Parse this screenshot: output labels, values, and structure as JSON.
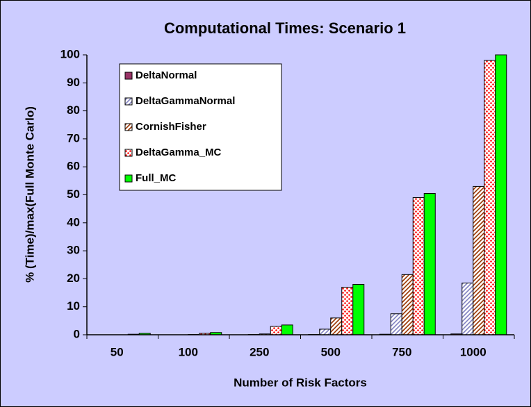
{
  "chart_data": {
    "type": "bar",
    "title": "Computational Times: Scenario 1",
    "y_label": "% (Time)/max(Full Monte Carlo)",
    "x_label": "Number of Risk Factors",
    "categories": [
      "50",
      "100",
      "250",
      "500",
      "750",
      "1000"
    ],
    "series": [
      {
        "name": "DeltaNormal",
        "color": "#993366",
        "pattern": "solid",
        "values": [
          0,
          0,
          0,
          0.1,
          0.2,
          0.3
        ]
      },
      {
        "name": "DeltaGammaNormal",
        "color": "#8080c0",
        "pattern": "hatch",
        "values": [
          0,
          0,
          0.1,
          2,
          7.5,
          18.5
        ]
      },
      {
        "name": "CornishFisher",
        "color": "#993300",
        "pattern": "hatch",
        "values": [
          0,
          0.1,
          0.3,
          6,
          21.5,
          53
        ]
      },
      {
        "name": "DeltaGamma_MC",
        "color": "#ff0000",
        "pattern": "dots",
        "values": [
          0.2,
          0.5,
          3,
          17,
          49,
          98
        ]
      },
      {
        "name": "Full_MC",
        "color": "#00ff00",
        "pattern": "solid",
        "values": [
          0.5,
          0.8,
          3.5,
          18,
          50.5,
          100
        ]
      }
    ],
    "ylim": [
      0,
      100
    ],
    "yticks": [
      0,
      10,
      20,
      30,
      40,
      50,
      60,
      70,
      80,
      90,
      100
    ],
    "grid": false,
    "legend": "upper-left"
  }
}
